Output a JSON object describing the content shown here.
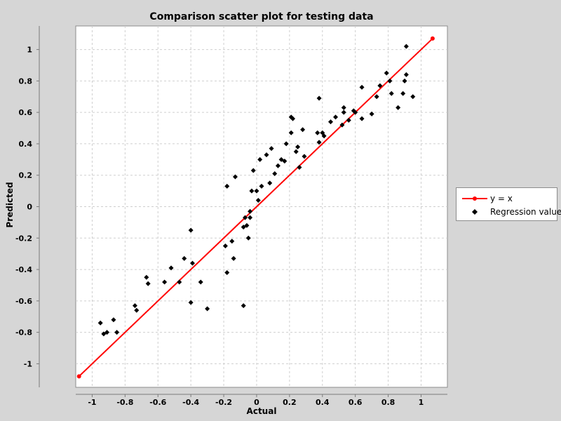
{
  "chart_data": {
    "type": "scatter",
    "title": "Comparison scatter plot for testing data",
    "xlabel": "Actual",
    "ylabel": "Predicted",
    "xlim": [
      -1.1,
      1.16
    ],
    "ylim": [
      -1.15,
      1.15
    ],
    "x_ticks": [
      -1,
      -0.8,
      -0.6,
      -0.4,
      -0.2,
      0,
      0.2,
      0.4,
      0.6,
      0.8,
      1
    ],
    "y_ticks": [
      -1,
      -0.8,
      -0.6,
      -0.4,
      -0.2,
      0,
      0.2,
      0.4,
      0.6,
      0.8,
      1
    ],
    "x_tick_labels": [
      "-1",
      "-0.8",
      "-0.6",
      "-0.4",
      "-0.2",
      "0",
      "0.2",
      "0.4",
      "0.6",
      "0.8",
      "1"
    ],
    "y_tick_labels": [
      "-1",
      "-0.8",
      "-0.6",
      "-0.4",
      "-0.2",
      "0",
      "0.2",
      "0.4",
      "0.6",
      "0.8",
      "1"
    ],
    "grid": true,
    "legend_position": "right",
    "series": [
      {
        "name": "y = x",
        "kind": "line",
        "color": "#ff0000",
        "x": [
          -1.08,
          1.07
        ],
        "y": [
          -1.08,
          1.07
        ]
      },
      {
        "name": "Regression values",
        "kind": "scatter",
        "color": "#000000",
        "x": [
          -0.95,
          -0.93,
          -0.91,
          -0.87,
          -0.85,
          -0.74,
          -0.73,
          -0.67,
          -0.66,
          -0.56,
          -0.52,
          -0.47,
          -0.44,
          -0.4,
          -0.4,
          -0.39,
          -0.34,
          -0.3,
          -0.19,
          -0.18,
          -0.18,
          -0.15,
          -0.14,
          -0.13,
          -0.08,
          -0.08,
          -0.07,
          -0.06,
          -0.05,
          -0.04,
          -0.04,
          -0.03,
          -0.02,
          0.0,
          0.01,
          0.02,
          0.03,
          0.06,
          0.08,
          0.09,
          0.11,
          0.13,
          0.15,
          0.17,
          0.18,
          0.21,
          0.21,
          0.22,
          0.24,
          0.25,
          0.26,
          0.28,
          0.29,
          0.37,
          0.38,
          0.38,
          0.4,
          0.41,
          0.45,
          0.48,
          0.52,
          0.53,
          0.53,
          0.56,
          0.59,
          0.6,
          0.64,
          0.64,
          0.7,
          0.73,
          0.75,
          0.79,
          0.81,
          0.82,
          0.86,
          0.89,
          0.9,
          0.91,
          0.91,
          0.95
        ],
        "y": [
          -0.74,
          -0.81,
          -0.8,
          -0.72,
          -0.8,
          -0.63,
          -0.66,
          -0.45,
          -0.49,
          -0.48,
          -0.39,
          -0.48,
          -0.33,
          -0.61,
          -0.15,
          -0.36,
          -0.48,
          -0.65,
          -0.25,
          -0.42,
          0.13,
          -0.22,
          -0.33,
          0.19,
          -0.63,
          -0.13,
          -0.07,
          -0.12,
          -0.2,
          -0.07,
          -0.03,
          0.1,
          0.23,
          0.1,
          0.04,
          0.3,
          0.13,
          0.33,
          0.15,
          0.37,
          0.21,
          0.26,
          0.3,
          0.29,
          0.4,
          0.47,
          0.57,
          0.56,
          0.35,
          0.38,
          0.25,
          0.49,
          0.32,
          0.47,
          0.41,
          0.69,
          0.47,
          0.45,
          0.54,
          0.57,
          0.52,
          0.63,
          0.6,
          0.55,
          0.61,
          0.6,
          0.56,
          0.76,
          0.59,
          0.7,
          0.77,
          0.85,
          0.8,
          0.72,
          0.63,
          0.72,
          0.8,
          0.84,
          1.02,
          0.7
        ]
      }
    ]
  }
}
